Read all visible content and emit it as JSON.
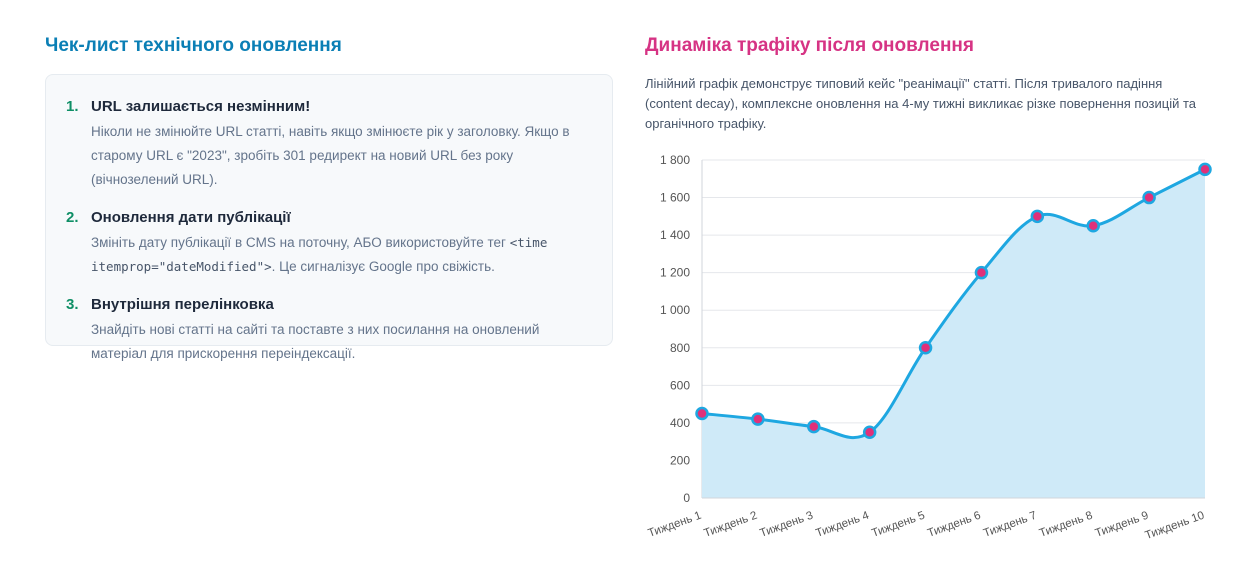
{
  "checklist": {
    "title": "Чек-лист технічного оновлення",
    "items": [
      {
        "num": "1.",
        "title": "URL залишається незмінним!",
        "desc": "Ніколи не змінюйте URL статті, навіть якщо змінюєте рік у заголовку. Якщо в старому URL є \"2023\", зробіть 301 редирект на новий URL без року (вічнозелений URL)."
      },
      {
        "num": "2.",
        "title": "Оновлення дати публікації",
        "desc_before": "Змініть дату публікації в CMS на поточну, АБО використовуйте тег ",
        "desc_code": "<time itemprop=\"dateModified\">",
        "desc_after": ". Це сигналізує Google про свіжість."
      },
      {
        "num": "3.",
        "title": "Внутрішня перелінковка",
        "desc": "Знайдіть нові статті на сайті та поставте з них посилання на оновлений матеріал для прискорення переіндексації."
      }
    ]
  },
  "traffic": {
    "title": "Динаміка трафіку після оновлення",
    "intro": "Лінійний графік демонструє типовий кейс \"реанімації\" статті. Після тривалого падіння (content decay), комплексне оновлення на 4-му тижні викликає різке повернення позицій та органічного трафіку."
  },
  "colors": {
    "line": "#1ea7e1",
    "fill": "#cfeaf8",
    "point": "#e0317a",
    "grid": "#e5e7eb"
  },
  "chart_data": {
    "type": "area",
    "categories": [
      "Тиждень 1",
      "Тиждень 2",
      "Тиждень 3",
      "Тиждень 4",
      "Тиждень 5",
      "Тиждень 6",
      "Тиждень 7",
      "Тиждень 8",
      "Тиждень 9",
      "Тиждень 10"
    ],
    "series": [
      {
        "values": [
          450,
          420,
          380,
          350,
          800,
          1200,
          1500,
          1450,
          1600,
          1750
        ]
      }
    ],
    "ylim": [
      0,
      1800
    ],
    "yticks": [
      0,
      200,
      400,
      600,
      800,
      1000,
      1200,
      1400,
      1600,
      1800
    ],
    "ytick_labels": [
      "0",
      "200",
      "400",
      "600",
      "800",
      "1 000",
      "1 200",
      "1 400",
      "1 600",
      "1 800"
    ],
    "grid": true,
    "legend": "none"
  }
}
